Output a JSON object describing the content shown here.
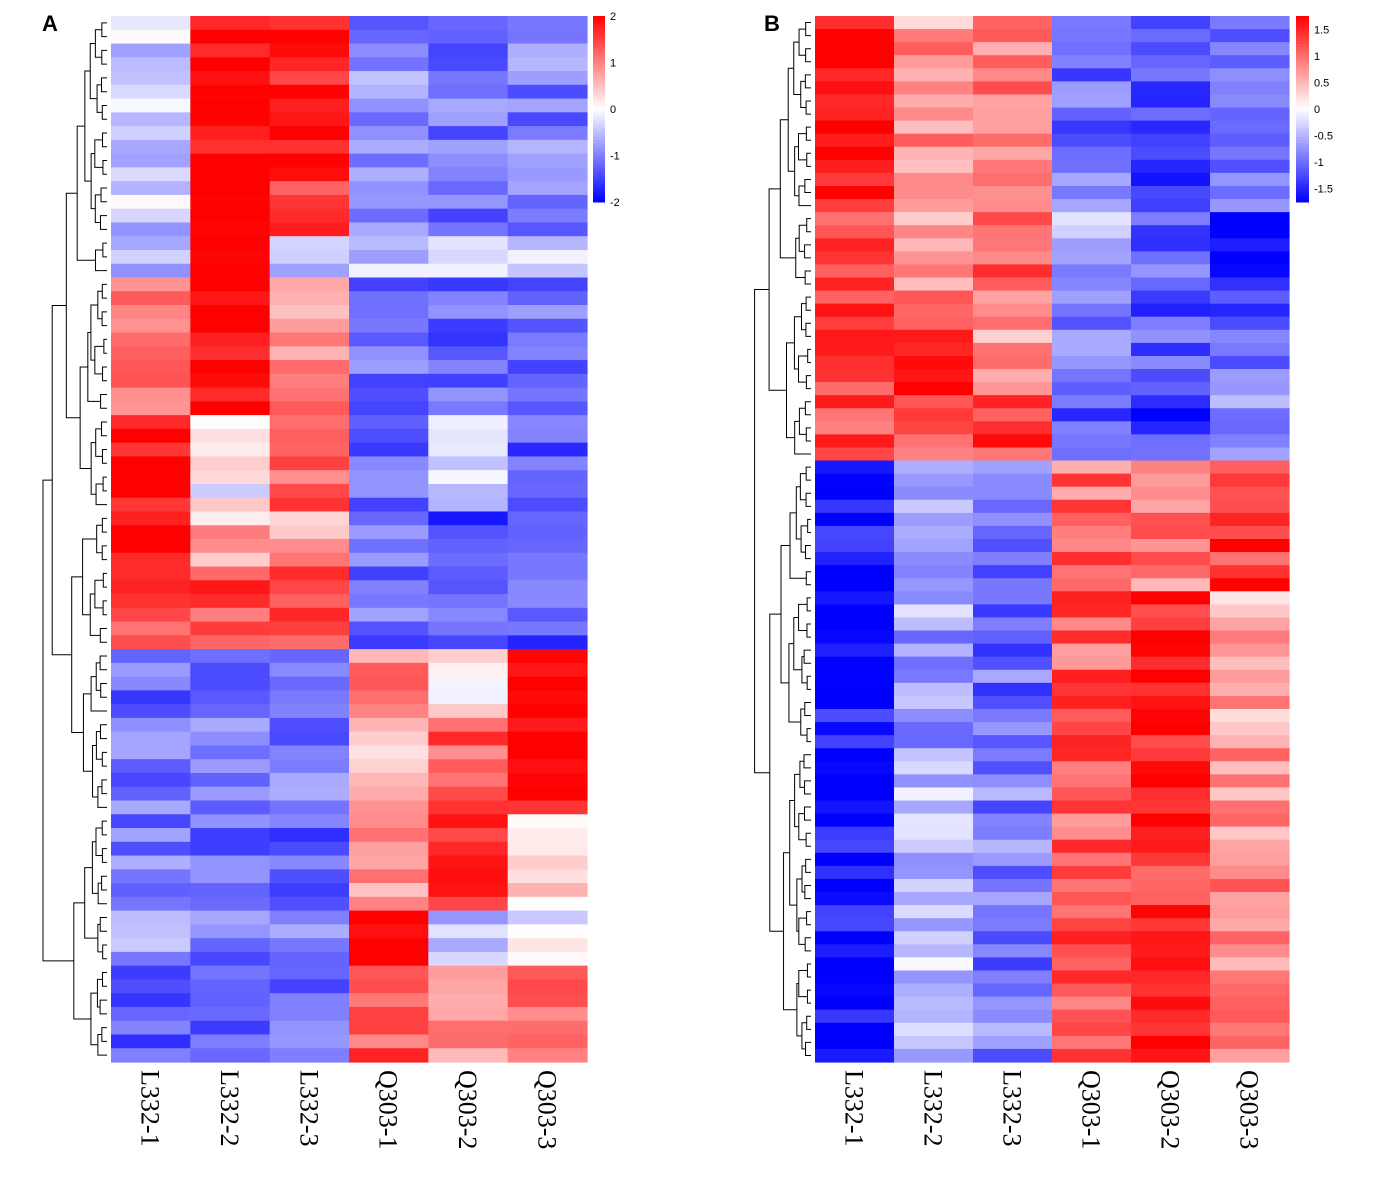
{
  "panels": [
    {
      "label": "A",
      "colorbar_ticks": [
        "2",
        "1",
        "0",
        "-1",
        "-2"
      ],
      "colorbar_range": [
        -2,
        2
      ],
      "chart_data": {
        "type": "heatmap",
        "columns": [
          "L332-1",
          "L332-2",
          "L332-3",
          "Q303-1",
          "Q303-2",
          "Q303-3"
        ],
        "color_scale": {
          "low": "#0000ff",
          "mid": "#ffffff",
          "high": "#ff0000",
          "range": [
            -2,
            2
          ]
        },
        "row_clusters": [
          {
            "rows": 16,
            "values": [
              -0.4,
              1.9,
              1.6,
              -0.9,
              -1.1,
              -1.0
            ]
          },
          {
            "rows": 3,
            "values": [
              -0.5,
              2.2,
              -0.4,
              -0.5,
              -0.5,
              -0.4
            ]
          },
          {
            "rows": 10,
            "values": [
              1.0,
              2.0,
              0.9,
              -1.2,
              -1.2,
              -1.1
            ]
          },
          {
            "rows": 7,
            "values": [
              2.0,
              0.0,
              1.3,
              -1.1,
              -0.3,
              -1.3
            ]
          },
          {
            "rows": 4,
            "values": [
              2.0,
              0.6,
              0.7,
              -1.2,
              -1.4,
              -1.2
            ]
          },
          {
            "rows": 6,
            "values": [
              1.4,
              1.4,
              1.3,
              -1.1,
              -1.3,
              -1.3
            ]
          },
          {
            "rows": 5,
            "values": [
              -1.2,
              -1.0,
              -1.2,
              0.9,
              0.2,
              2.0
            ]
          },
          {
            "rows": 7,
            "values": [
              -1.0,
              -1.0,
              -1.0,
              0.5,
              1.3,
              1.9
            ]
          },
          {
            "rows": 7,
            "values": [
              -1.0,
              -1.2,
              -1.2,
              0.8,
              1.8,
              0.4
            ]
          },
          {
            "rows": 4,
            "values": [
              -0.8,
              -1.0,
              -0.9,
              2.1,
              -0.4,
              -0.1
            ]
          },
          {
            "rows": 7,
            "values": [
              -1.2,
              -1.2,
              -1.1,
              1.3,
              0.8,
              1.1
            ]
          }
        ]
      }
    },
    {
      "label": "B",
      "colorbar_ticks": [
        "1.5",
        "1",
        "0.5",
        "0",
        "-0.5",
        "-1",
        "-1.5"
      ],
      "colorbar_range": [
        -1.75,
        1.75
      ],
      "chart_data": {
        "type": "heatmap",
        "columns": [
          "L332-1",
          "L332-2",
          "L332-3",
          "Q303-1",
          "Q303-2",
          "Q303-3"
        ],
        "color_scale": {
          "low": "#0000ff",
          "mid": "#ffffff",
          "high": "#ff0000",
          "range": [
            -1.75,
            1.75
          ]
        },
        "row_clusters": [
          {
            "rows": 15,
            "values": [
              1.6,
              0.7,
              0.8,
              -1.0,
              -1.3,
              -0.9
            ]
          },
          {
            "rows": 6,
            "values": [
              1.3,
              0.8,
              1.0,
              -0.6,
              -1.0,
              -1.5
            ]
          },
          {
            "rows": 8,
            "values": [
              1.3,
              1.4,
              0.6,
              -1.0,
              -1.1,
              -1.1
            ]
          },
          {
            "rows": 5,
            "values": [
              1.2,
              1.2,
              1.3,
              -1.3,
              -1.4,
              -0.6
            ]
          },
          {
            "rows": 10,
            "values": [
              -1.7,
              -0.7,
              -0.9,
              1.0,
              0.8,
              1.4
            ]
          },
          {
            "rows": 12,
            "values": [
              -1.6,
              -0.6,
              -1.0,
              1.1,
              1.6,
              0.6
            ]
          },
          {
            "rows": 24,
            "values": [
              -1.7,
              -0.4,
              -0.9,
              1.1,
              1.4,
              0.8
            ]
          }
        ]
      }
    }
  ]
}
